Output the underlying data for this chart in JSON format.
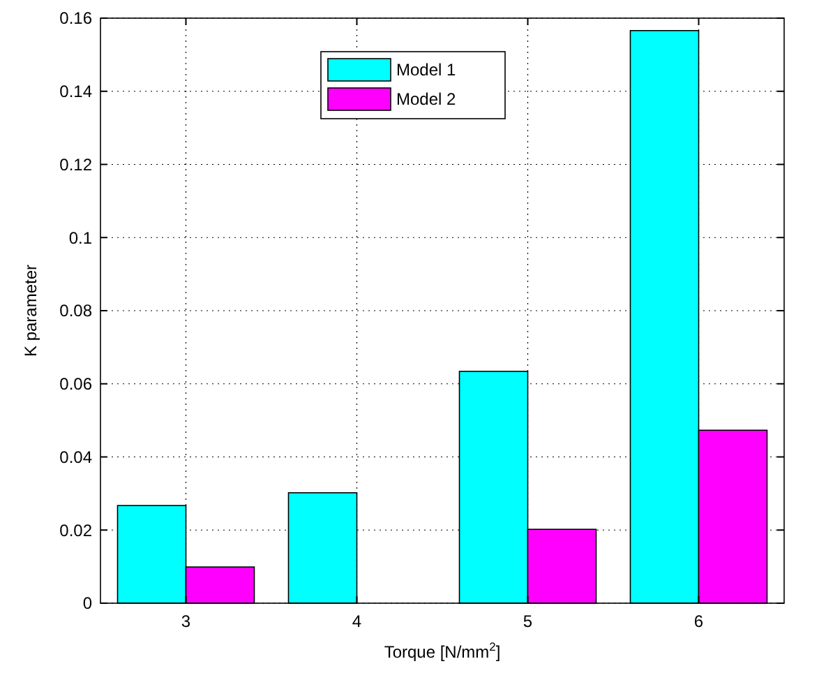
{
  "chart_data": {
    "type": "bar",
    "xlabel": "Torque [N/mm$^{2}$]",
    "ylabel": "K parameter",
    "categories": [
      "3",
      "4",
      "5",
      "6"
    ],
    "series": [
      {
        "name": "Model 1",
        "color": "#00ffff",
        "values": [
          0.0267,
          0.0302,
          0.0634,
          0.1566
        ]
      },
      {
        "name": "Model 2",
        "color": "#ff00ff",
        "values": [
          0.0099,
          0,
          0.0202,
          0.0473
        ]
      }
    ],
    "ylim": [
      0,
      0.16
    ],
    "yticks": [
      0,
      0.02,
      0.04,
      0.06,
      0.08,
      0.1,
      0.12,
      0.14,
      0.16
    ],
    "grid": true,
    "legend": "top"
  }
}
